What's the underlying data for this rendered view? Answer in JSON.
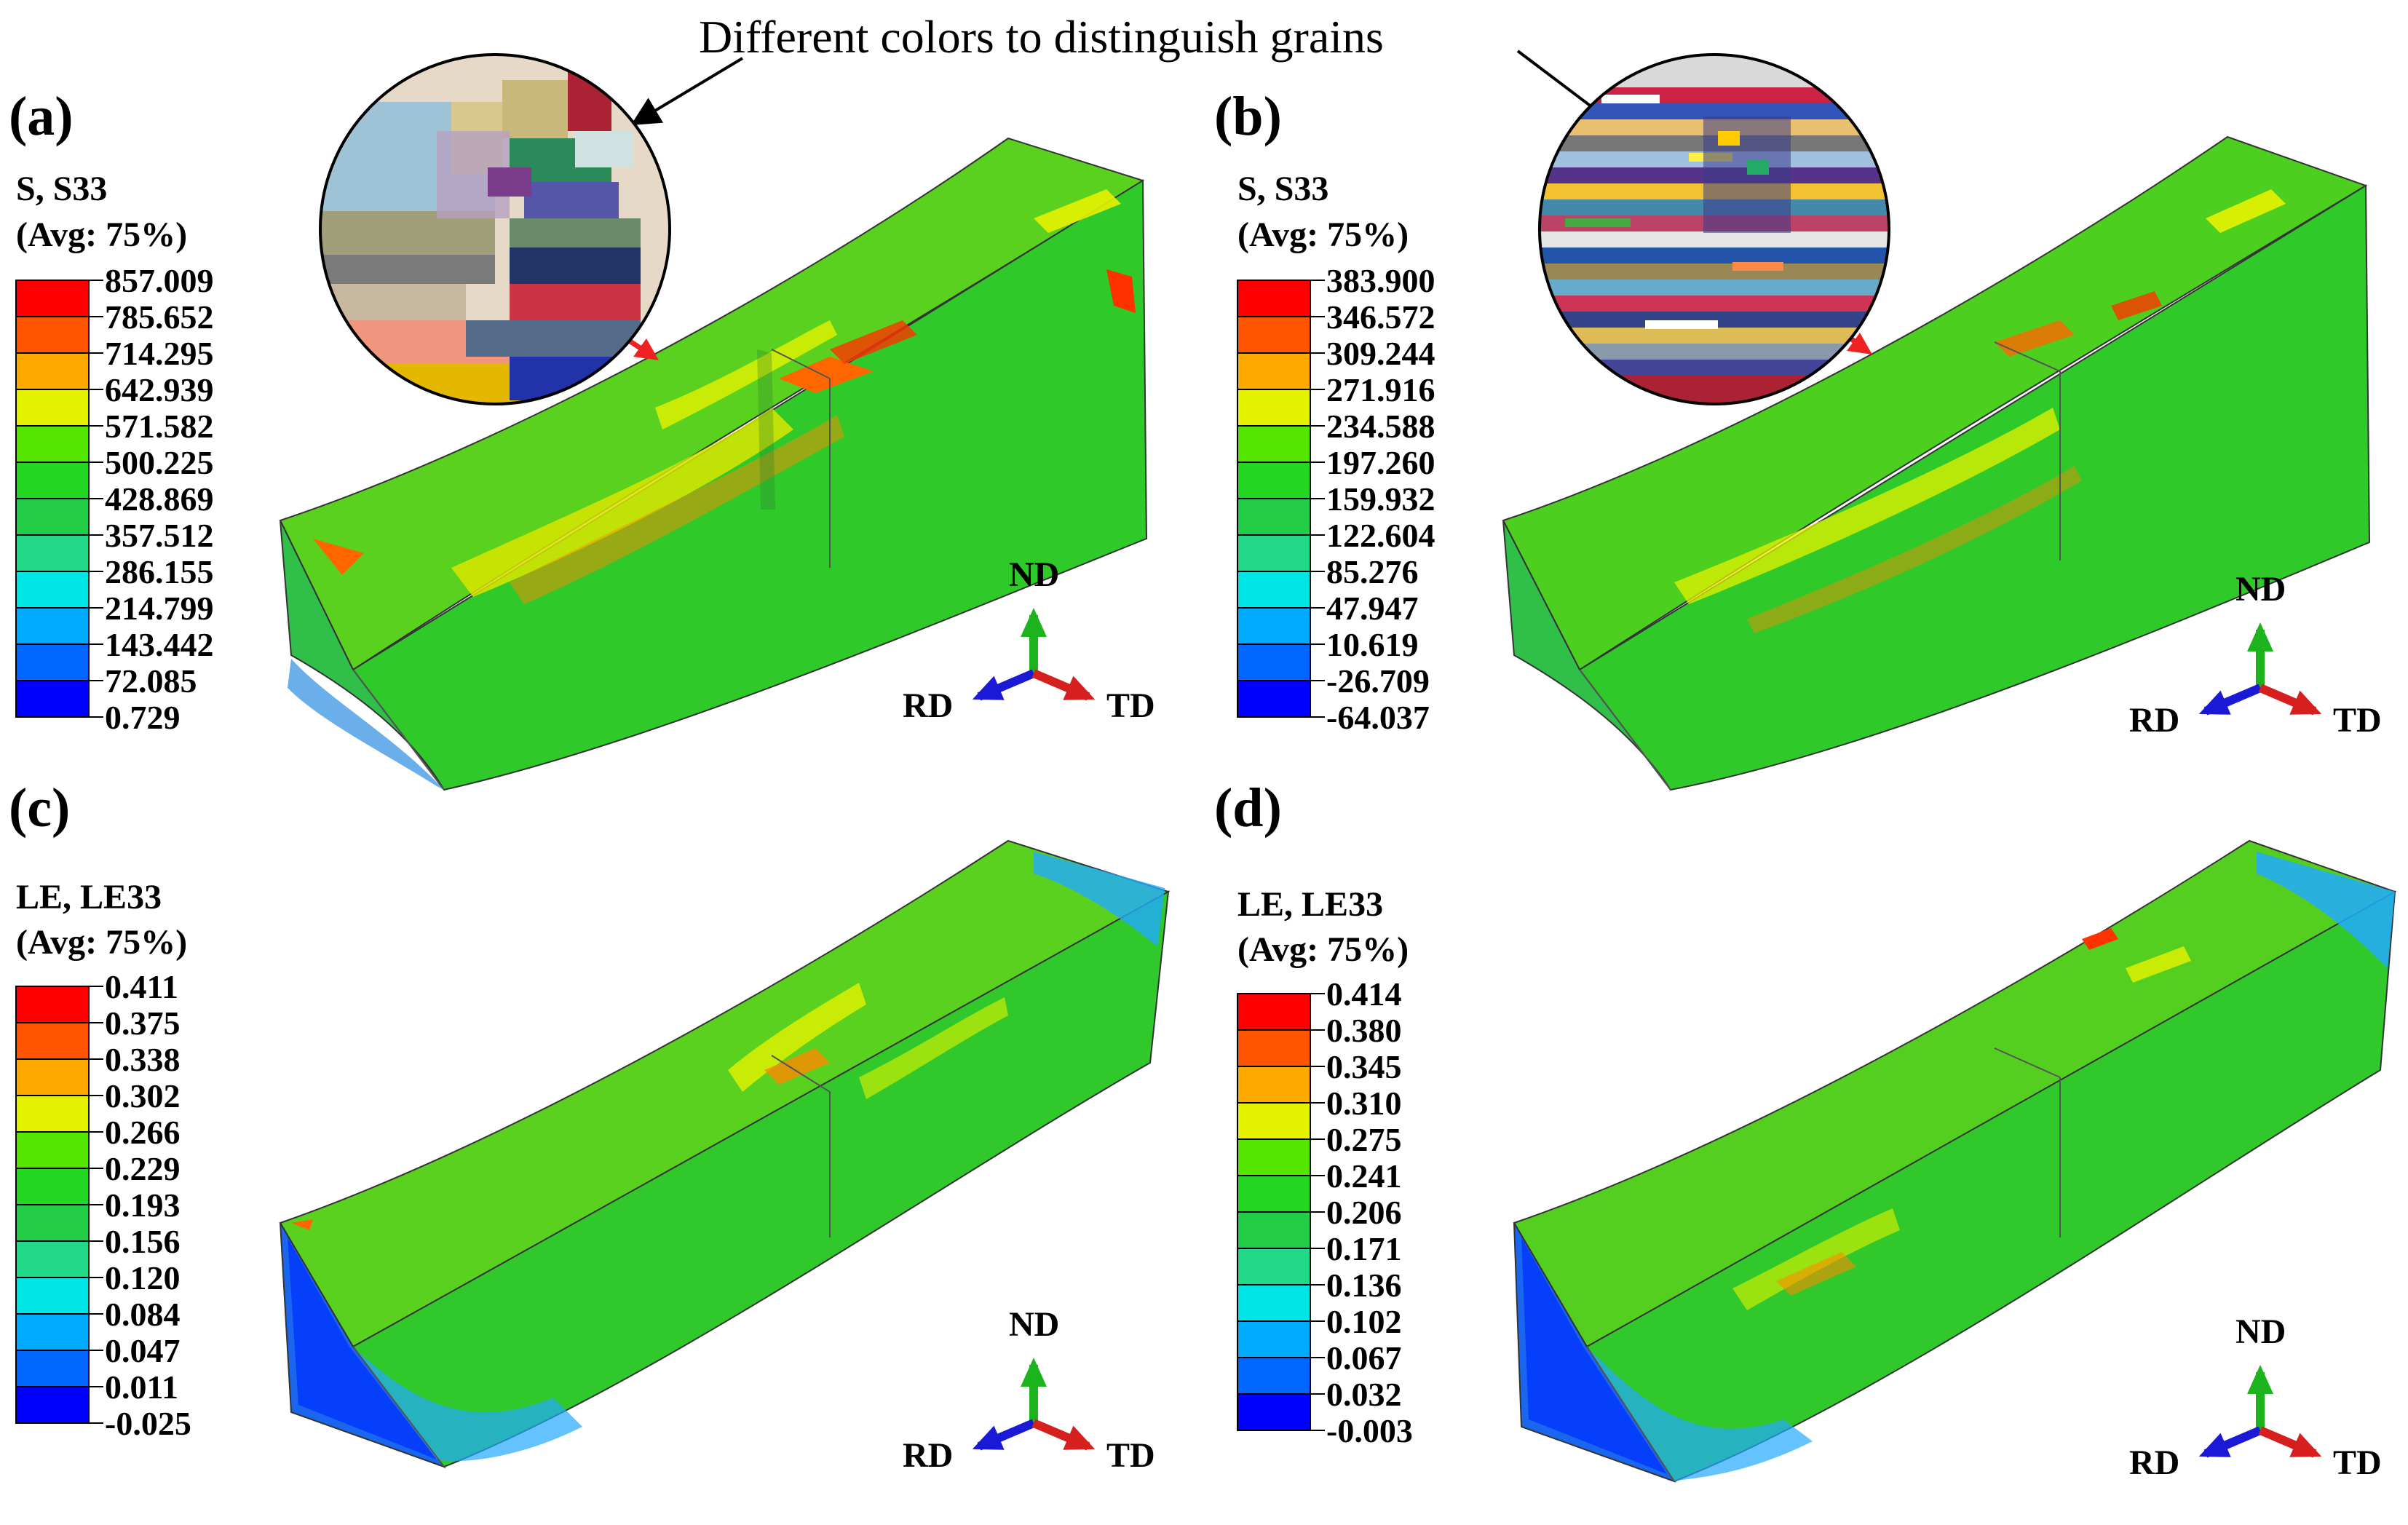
{
  "annotation": "Different colors to distinguish grains",
  "colors": {
    "legend_scale": [
      "#ff0000",
      "#ff5500",
      "#ffaa00",
      "#e5f200",
      "#55e600",
      "#22d622",
      "#22cc44",
      "#22d988",
      "#00e5e5",
      "#00aaff",
      "#0066ff",
      "#0000ff"
    ],
    "model_green": "#33cc1a",
    "axis_nd": "#1db31d",
    "axis_rd": "#1a1ad6",
    "axis_td": "#d62020",
    "pointer_arrow": "#ee2222"
  },
  "panels": [
    {
      "id": "a",
      "label": "(a)",
      "legend": {
        "title1": "S, S33",
        "title2": "(Avg: 75%)",
        "values": [
          "857.009",
          "785.652",
          "714.295",
          "642.939",
          "571.582",
          "500.225",
          "428.869",
          "357.512",
          "286.155",
          "214.799",
          "143.442",
          "72.085",
          "0.729"
        ]
      },
      "axes": {
        "nd": "ND",
        "rd": "RD",
        "td": "TD"
      }
    },
    {
      "id": "b",
      "label": "(b)",
      "legend": {
        "title1": "S, S33",
        "title2": "(Avg: 75%)",
        "values": [
          "383.900",
          "346.572",
          "309.244",
          "271.916",
          "234.588",
          "197.260",
          "159.932",
          "122.604",
          "85.276",
          "47.947",
          "10.619",
          "-26.709",
          "-64.037"
        ]
      },
      "axes": {
        "nd": "ND",
        "rd": "RD",
        "td": "TD"
      }
    },
    {
      "id": "c",
      "label": "(c)",
      "legend": {
        "title1": "LE, LE33",
        "title2": "(Avg: 75%)",
        "values": [
          "0.411",
          "0.375",
          "0.338",
          "0.302",
          "0.266",
          "0.229",
          "0.193",
          "0.156",
          "0.120",
          "0.084",
          "0.047",
          "0.011",
          "-0.025"
        ]
      },
      "axes": {
        "nd": "ND",
        "rd": "RD",
        "td": "TD"
      }
    },
    {
      "id": "d",
      "label": "(d)",
      "legend": {
        "title1": "LE, LE33",
        "title2": "(Avg: 75%)",
        "values": [
          "0.414",
          "0.380",
          "0.345",
          "0.310",
          "0.275",
          "0.241",
          "0.206",
          "0.171",
          "0.136",
          "0.102",
          "0.067",
          "0.032",
          "-0.003"
        ]
      },
      "axes": {
        "nd": "ND",
        "rd": "RD",
        "td": "TD"
      }
    }
  ]
}
